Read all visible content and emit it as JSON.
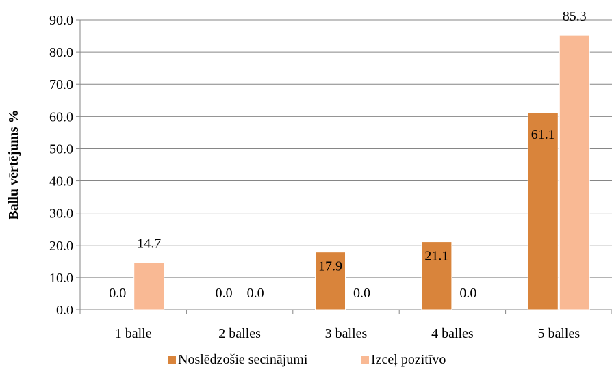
{
  "chart_data": {
    "type": "bar",
    "categories": [
      "1 balle",
      "2 balles",
      "3 balles",
      "4 balles",
      "5 balles"
    ],
    "series": [
      {
        "name": "Noslēdzošie secinājumi",
        "color": "#D9843B",
        "values": [
          0.0,
          0.0,
          17.9,
          21.1,
          61.1
        ],
        "labels": [
          "0.0",
          "0.0",
          "17.9",
          "21.1",
          "61.1"
        ]
      },
      {
        "name": "Izceļ pozitīvo",
        "color": "#F9B994",
        "values": [
          14.7,
          0.0,
          0.0,
          0.0,
          85.3
        ],
        "labels": [
          "14.7",
          "0.0",
          "0.0",
          "0.0",
          "85.3"
        ]
      }
    ],
    "ylabel": "Ballu vērtējums %",
    "xlabel": "",
    "ylim": [
      0,
      90
    ],
    "yticks": [
      "0.0",
      "10.0",
      "20.0",
      "30.0",
      "40.0",
      "50.0",
      "60.0",
      "70.0",
      "80.0",
      "90.0"
    ],
    "grid": true,
    "legend": "bottom"
  }
}
